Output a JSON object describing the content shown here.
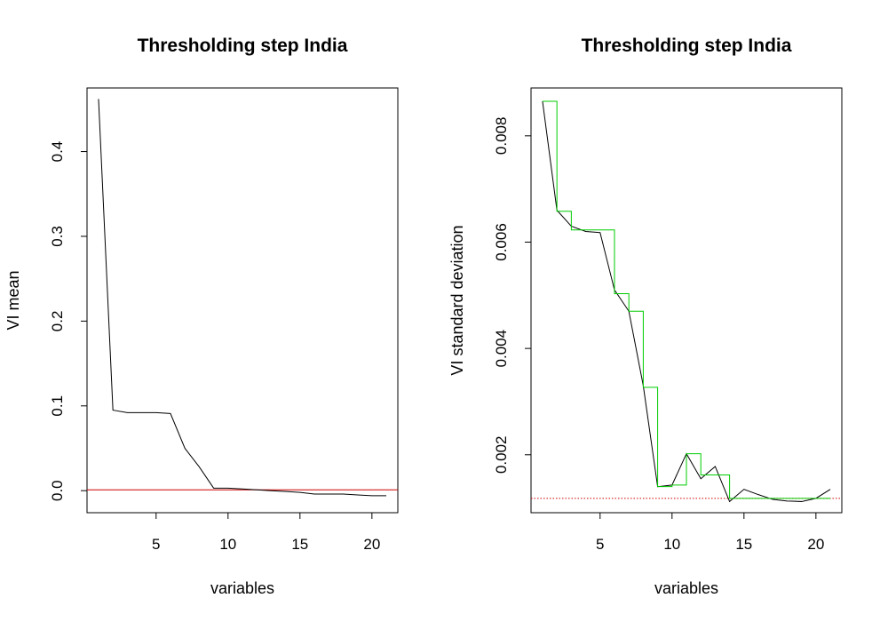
{
  "chart_data": [
    {
      "type": "line",
      "title": "Thresholding step India",
      "xlabel": "variables",
      "ylabel": "VI mean",
      "xlim": [
        0.2,
        21.8
      ],
      "ylim": [
        -0.026,
        0.475
      ],
      "xticks": [
        5,
        10,
        15,
        20
      ],
      "yticks": [
        0.0,
        0.1,
        0.2,
        0.3,
        0.4
      ],
      "ytick_labels": [
        "0.0",
        "0.1",
        "0.2",
        "0.3",
        "0.4"
      ],
      "series": [
        {
          "color": "#000000",
          "x": [
            1,
            2,
            3,
            4,
            5,
            6,
            7,
            8,
            9,
            10,
            11,
            12,
            13,
            14,
            15,
            16,
            17,
            18,
            19,
            20,
            21
          ],
          "y": [
            0.462,
            0.095,
            0.092,
            0.092,
            0.092,
            0.091,
            0.05,
            0.028,
            0.003,
            0.003,
            0.002,
            0.001,
            0.0,
            -0.001,
            -0.002,
            -0.004,
            -0.004,
            -0.004,
            -0.005,
            -0.006,
            -0.006
          ]
        }
      ],
      "hlines": [
        {
          "y": 0.001,
          "color": "#cc0000",
          "style": "solid"
        }
      ]
    },
    {
      "type": "line",
      "title": "Thresholding step India",
      "xlabel": "variables",
      "ylabel": "VI standard deviation",
      "xlim": [
        0.2,
        21.8
      ],
      "ylim": [
        0.00091,
        0.0089
      ],
      "xticks": [
        5,
        10,
        15,
        20
      ],
      "yticks": [
        0.002,
        0.004,
        0.006,
        0.008
      ],
      "ytick_labels": [
        "0.002",
        "0.004",
        "0.006",
        "0.008"
      ],
      "series": [
        {
          "color": "#000000",
          "style": "line",
          "x": [
            1,
            2,
            3,
            4,
            5,
            6,
            7,
            8,
            9,
            10,
            11,
            12,
            13,
            14,
            15,
            16,
            17,
            18,
            19,
            20,
            21
          ],
          "y": [
            0.00865,
            0.0066,
            0.0063,
            0.0062,
            0.00618,
            0.0051,
            0.0047,
            0.0033,
            0.0014,
            0.00143,
            0.00202,
            0.00155,
            0.00178,
            0.00112,
            0.00135,
            0.00125,
            0.00116,
            0.00113,
            0.00112,
            0.00118,
            0.00135
          ]
        },
        {
          "color": "#00cc00",
          "style": "step",
          "x": [
            1,
            2,
            3,
            4,
            5,
            6,
            7,
            8,
            9,
            10,
            11,
            12,
            13,
            14,
            15,
            16,
            17,
            18,
            19,
            20,
            21
          ],
          "y": [
            0.00865,
            0.00658,
            0.00623,
            0.00623,
            0.00623,
            0.00503,
            0.0047,
            0.00327,
            0.0014,
            0.00143,
            0.00202,
            0.00162,
            0.00162,
            0.00118,
            0.00118,
            0.00118,
            0.00118,
            0.00118,
            0.00118,
            0.00118,
            0.00118
          ]
        }
      ],
      "hlines": [
        {
          "y": 0.00118,
          "color": "#cc0000",
          "style": "dotted"
        }
      ]
    }
  ]
}
